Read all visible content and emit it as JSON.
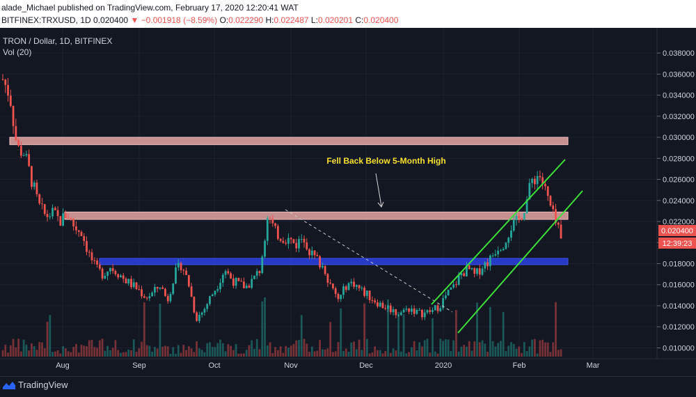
{
  "header": {
    "publish_line": "alade_Michael published on TradingView.com, February 17, 2020 12:20:41 WAT",
    "symbol": "BITFINEX:TRXUSD, 1D",
    "last": "0.020400",
    "change_arrow": "▼",
    "change": "−0.001918 (−8.59%)",
    "o_label": "O:",
    "o_value": "0.022290",
    "h_label": "H:",
    "h_value": "0.022487",
    "l_label": "L:",
    "l_value": "0.020201",
    "c_label": "C:",
    "c_value": "0.020400"
  },
  "legend": {
    "title": "TRON / Dollar, 1D, BITFINEX",
    "indicator": "Vol (20)"
  },
  "annotation": "Fell Back Below 5-Month High",
  "price_badge": "0.020400",
  "countdown_badge": "12:39:23",
  "footer": {
    "brand": "TradingView"
  },
  "colors": {
    "bg": "#131722",
    "up": "#26a69a",
    "down": "#ef5350",
    "resistance_zone": "#e8a6a3",
    "support_zone": "#2a3ed8",
    "channel": "#3ee03a",
    "annotation_text": "#f5e12c"
  },
  "chart_data": {
    "type": "candlestick",
    "y_ticks": [
      "0.038000",
      "0.036000",
      "0.034000",
      "0.032000",
      "0.030000",
      "0.028000",
      "0.026000",
      "0.024000",
      "0.022000",
      "0.020000",
      "0.018000",
      "0.016000",
      "0.014000",
      "0.012000",
      "0.010000"
    ],
    "ylim": [
      0.0093,
      0.0394
    ],
    "x_ticks": [
      "Aug",
      "Sep",
      "Oct",
      "Nov",
      "Dec",
      "2020",
      "Feb",
      "Mar"
    ],
    "zones": [
      {
        "name": "upper-resistance-zone",
        "low": 0.0293,
        "high": 0.03
      },
      {
        "name": "five-month-high-zone",
        "low": 0.0222,
        "high": 0.0229
      },
      {
        "name": "support-zone",
        "low": 0.0179,
        "high": 0.0185
      }
    ],
    "series_sketch": [
      0.0355,
      0.034,
      0.029,
      0.0285,
      0.026,
      0.0235,
      0.0225,
      0.0228,
      0.022,
      0.0228,
      0.0215,
      0.021,
      0.019,
      0.0175,
      0.017,
      0.0177,
      0.0172,
      0.0165,
      0.016,
      0.0155,
      0.0148,
      0.0152,
      0.016,
      0.0145,
      0.017,
      0.018,
      0.016,
      0.0128,
      0.0135,
      0.0148,
      0.016,
      0.0175,
      0.0165,
      0.016,
      0.0158,
      0.0165,
      0.0175,
      0.0228,
      0.021,
      0.0205,
      0.0203,
      0.0198,
      0.0207,
      0.019,
      0.0183,
      0.0175,
      0.0155,
      0.0145,
      0.016,
      0.0162,
      0.0155,
      0.015,
      0.0145,
      0.014,
      0.0138,
      0.0133,
      0.0135,
      0.0138,
      0.0133,
      0.0133,
      0.0135,
      0.014,
      0.015,
      0.0158,
      0.017,
      0.0175,
      0.0168,
      0.0178,
      0.0183,
      0.0195,
      0.02,
      0.0215,
      0.022,
      0.0235,
      0.026,
      0.0265,
      0.0245,
      0.0223,
      0.0204
    ]
  }
}
